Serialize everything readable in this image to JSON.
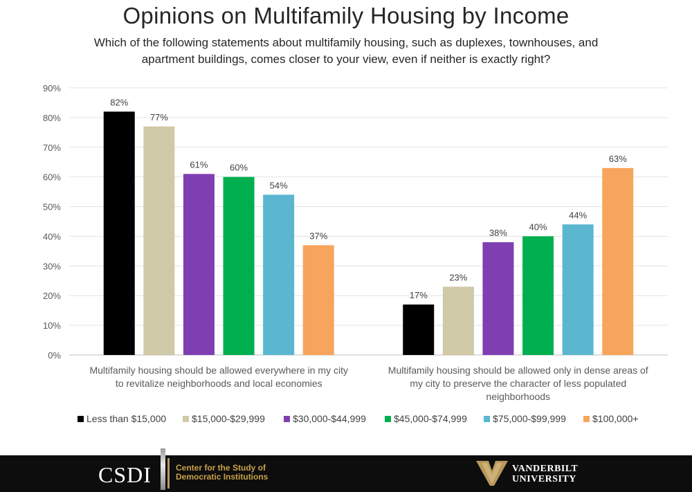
{
  "chart_data": {
    "type": "bar",
    "title": "Opinions on Multifamily Housing by Income",
    "subtitle_lines": [
      "Which of the following statements about multifamily housing, such as duplexes, townhouses, and",
      "apartment buildings, comes closer to your view, even if neither is exactly right?"
    ],
    "categories": [
      [
        "Multifamily housing should be allowed everywhere in my city",
        "to revitalize neighborhoods and local economies"
      ],
      [
        "Multifamily housing should be allowed only in dense areas of",
        "my city to preserve the character of less populated",
        "neighborhoods"
      ]
    ],
    "series": [
      {
        "name": "Less than $15,000",
        "color": "#000000",
        "values": [
          82,
          17
        ]
      },
      {
        "name": "$15,000-$29,999",
        "color": "#d0c9a8",
        "values": [
          77,
          23
        ]
      },
      {
        "name": "$30,000-$44,999",
        "color": "#7f3fb1",
        "values": [
          61,
          38
        ]
      },
      {
        "name": "$45,000-$74,999",
        "color": "#00b050",
        "values": [
          60,
          40
        ]
      },
      {
        "name": "$75,000-$99,999",
        "color": "#5bb6d0",
        "values": [
          54,
          44
        ]
      },
      {
        "name": "$100,000+",
        "color": "#f7a55c",
        "values": [
          37,
          63
        ]
      }
    ],
    "y_ticks": [
      0,
      10,
      20,
      30,
      40,
      50,
      60,
      70,
      80,
      90
    ],
    "ylim": [
      0,
      90
    ],
    "value_suffix": "%",
    "grid": true,
    "legend": "bottom"
  },
  "footer": {
    "csdi_abbr": "CSDI",
    "csdi_name_line1": "Center for the Study of",
    "csdi_name_line2": "Democratic Institutions",
    "vu_line1": "VANDERBILT",
    "vu_line2": "UNIVERSITY",
    "background": "#0d0d0d",
    "csdi_color": "#c9a349"
  }
}
